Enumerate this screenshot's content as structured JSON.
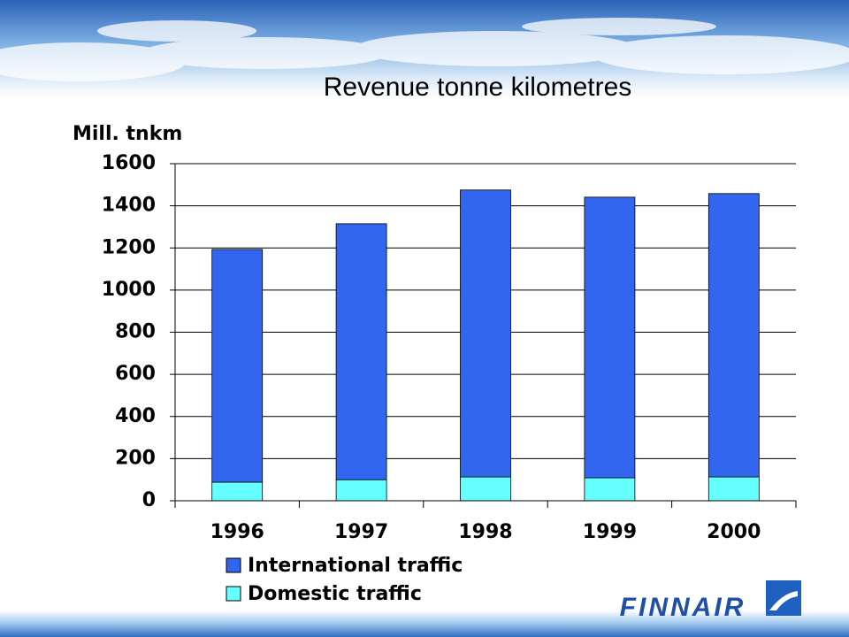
{
  "chart_data": {
    "type": "stacked-bar",
    "title": "Revenue tonne kilometres",
    "y_label": "Mill. tnkm",
    "categories": [
      "1996",
      "1997",
      "1998",
      "1999",
      "2000"
    ],
    "series": [
      {
        "name": "International traffic",
        "color": "#3366ee",
        "values": [
          1105,
          1215,
          1362,
          1332,
          1345
        ]
      },
      {
        "name": "Domestic traffic",
        "color": "#66ffff",
        "values": [
          88,
          100,
          113,
          109,
          113
        ]
      }
    ],
    "ylim": [
      0,
      1600
    ],
    "yticks": [
      0,
      200,
      400,
      600,
      800,
      1000,
      1200,
      1400,
      1600
    ],
    "grid": true,
    "legend": "bottom"
  },
  "logo": "FINNAIR"
}
